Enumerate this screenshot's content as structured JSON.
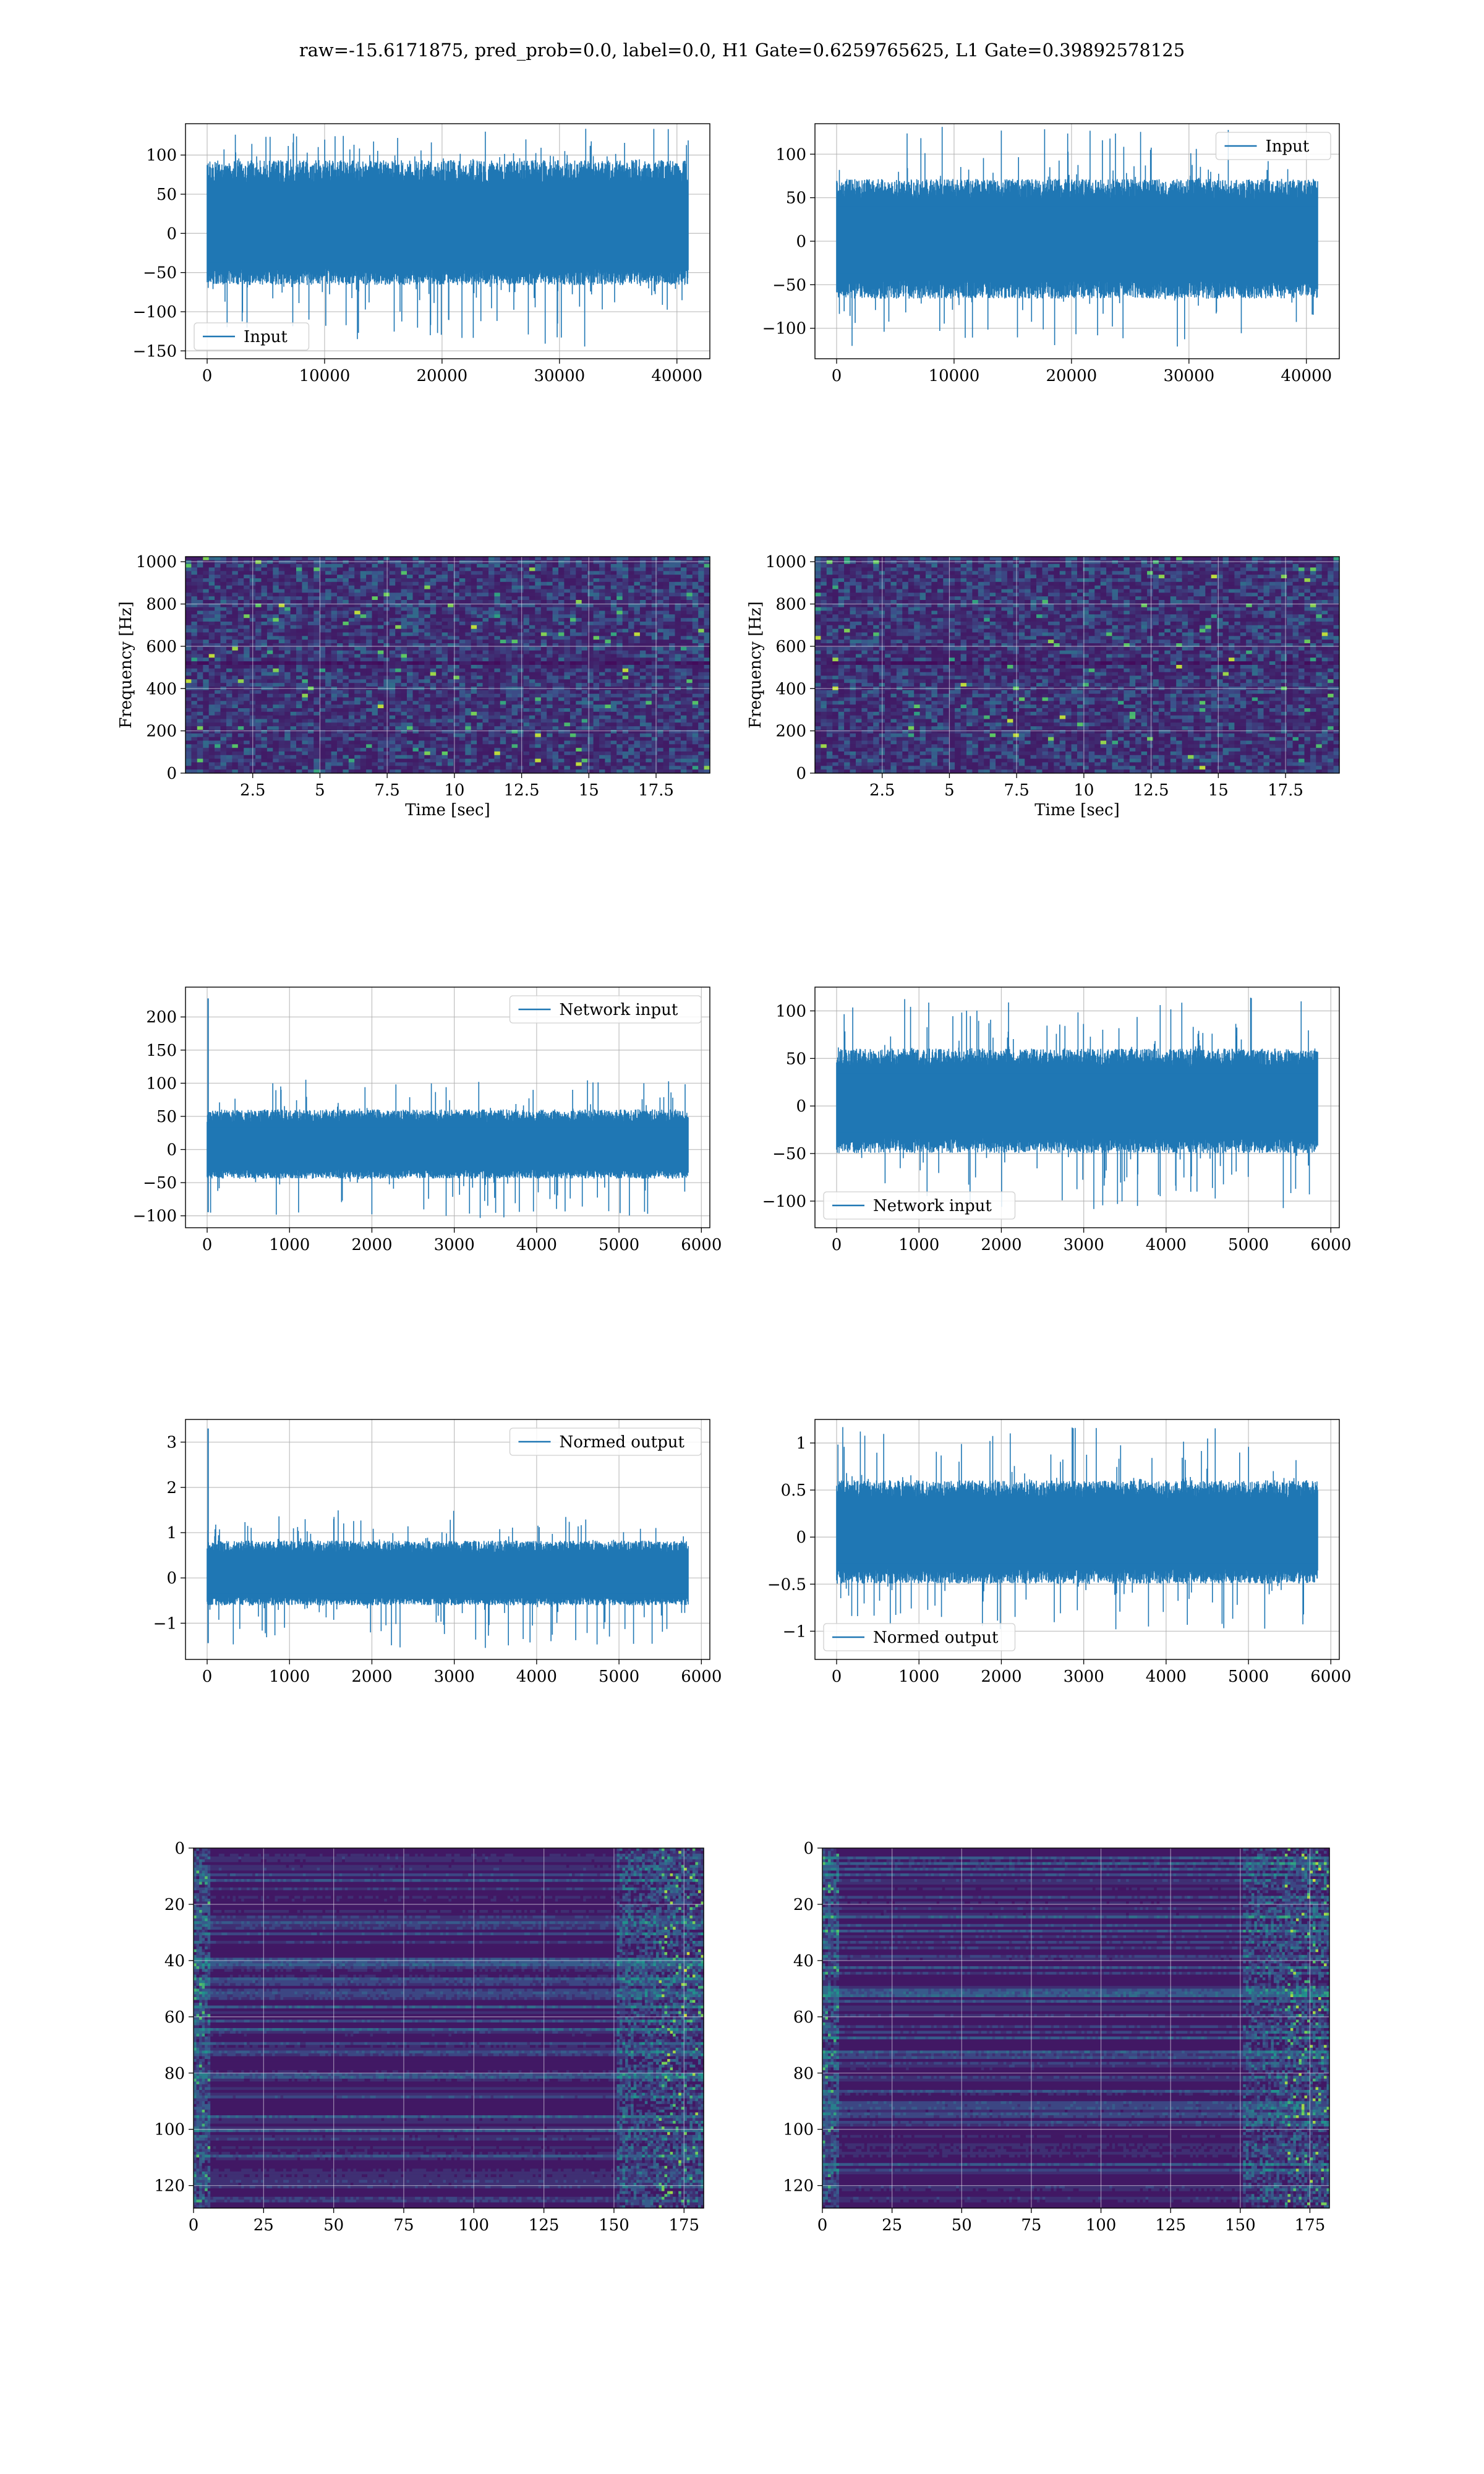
{
  "figure": {
    "title": "raw=-15.6171875, pred_prob=0.0, label=0.0, H1 Gate=0.6259765625, L1 Gate=0.39892578125"
  },
  "colors": {
    "series": "#1f77b4",
    "grid": "#b0b0b0",
    "heatmap_base": "#440154",
    "heatmap_mid": "#3b528b",
    "heatmap_high": "#21918c",
    "heatmap_peak": "#5ec962",
    "heatmap_max": "#fde725"
  },
  "chart_data": [
    {
      "id": "input-h1",
      "type": "line",
      "legend": {
        "label": "Input",
        "placement": "lower-left"
      },
      "x_range": [
        0,
        40960
      ],
      "ylim": [
        -160,
        140
      ],
      "xticks": [
        0,
        10000,
        20000,
        30000,
        40000
      ],
      "yticks": [
        -150,
        -100,
        -50,
        0,
        50,
        100
      ],
      "signal": {
        "n_samples": 40960,
        "typical_min": -60,
        "typical_max": 85,
        "peak_min": -147,
        "peak_max": 135
      },
      "grid": true
    },
    {
      "id": "input-l1",
      "type": "line",
      "legend": {
        "label": "Input",
        "placement": "upper-right"
      },
      "x_range": [
        0,
        40960
      ],
      "ylim": [
        -135,
        135
      ],
      "xticks": [
        0,
        10000,
        20000,
        30000,
        40000
      ],
      "yticks": [
        -100,
        -50,
        0,
        50,
        100
      ],
      "signal": {
        "n_samples": 40960,
        "typical_min": -60,
        "typical_max": 65,
        "peak_min": -122,
        "peak_max": 132
      },
      "grid": true
    },
    {
      "id": "spec-h1",
      "type": "heatmap",
      "xlabel": "Time [sec]",
      "ylabel": "Frequency [Hz]",
      "xlim": [
        0,
        19.5
      ],
      "ylim": [
        0,
        1024
      ],
      "xticks": [
        2.5,
        5.0,
        7.5,
        10.0,
        12.5,
        15.0,
        17.5
      ],
      "yticks": [
        0,
        200,
        400,
        600,
        800,
        1000
      ],
      "grid": true
    },
    {
      "id": "spec-l1",
      "type": "heatmap",
      "xlabel": "Time [sec]",
      "ylabel": "Frequency [Hz]",
      "xlim": [
        0,
        19.5
      ],
      "ylim": [
        0,
        1024
      ],
      "xticks": [
        2.5,
        5.0,
        7.5,
        10.0,
        12.5,
        15.0,
        17.5
      ],
      "yticks": [
        0,
        200,
        400,
        600,
        800,
        1000
      ],
      "grid": true
    },
    {
      "id": "net-h1",
      "type": "line",
      "legend": {
        "label": "Network input",
        "placement": "upper-right"
      },
      "x_range": [
        0,
        5840
      ],
      "ylim": [
        -118,
        245
      ],
      "xticks": [
        0,
        1000,
        2000,
        3000,
        4000,
        5000,
        6000
      ],
      "yticks": [
        -100,
        -50,
        0,
        50,
        100,
        150,
        200
      ],
      "signal": {
        "n_samples": 5840,
        "typical_min": -40,
        "typical_max": 55,
        "peak_min": -105,
        "peak_max": 107,
        "spike": 228
      },
      "grid": true
    },
    {
      "id": "net-l1",
      "type": "line",
      "legend": {
        "label": "Network input",
        "placement": "lower-left"
      },
      "x_range": [
        0,
        5840
      ],
      "ylim": [
        -128,
        125
      ],
      "xticks": [
        0,
        1000,
        2000,
        3000,
        4000,
        5000,
        6000
      ],
      "yticks": [
        -100,
        -50,
        0,
        50,
        100
      ],
      "signal": {
        "n_samples": 5840,
        "typical_min": -45,
        "typical_max": 55,
        "peak_min": -110,
        "peak_max": 115
      },
      "grid": true
    },
    {
      "id": "norm-h1",
      "type": "line",
      "legend": {
        "label": "Normed output",
        "placement": "upper-right"
      },
      "x_range": [
        0,
        5840
      ],
      "ylim": [
        -1.8,
        3.5
      ],
      "xticks": [
        0,
        1000,
        2000,
        3000,
        4000,
        5000,
        6000
      ],
      "yticks": [
        -1,
        0,
        1,
        2,
        3
      ],
      "signal": {
        "n_samples": 5840,
        "typical_min": -0.55,
        "typical_max": 0.75,
        "peak_min": -1.6,
        "peak_max": 1.5,
        "spike": 3.3
      },
      "grid": true
    },
    {
      "id": "norm-l1",
      "type": "line",
      "legend": {
        "label": "Normed output",
        "placement": "lower-left"
      },
      "x_range": [
        0,
        5840
      ],
      "ylim": [
        -1.3,
        1.25
      ],
      "xticks": [
        0,
        1000,
        2000,
        3000,
        4000,
        5000,
        6000
      ],
      "yticks": [
        -1.0,
        -0.5,
        0.0,
        0.5,
        1.0
      ],
      "signal": {
        "n_samples": 5840,
        "typical_min": -0.45,
        "typical_max": 0.55,
        "peak_min": -1.05,
        "peak_max": 1.17
      },
      "grid": true
    },
    {
      "id": "feat-h1",
      "type": "heatmap",
      "xlim": [
        0,
        182
      ],
      "ylim": [
        128,
        0
      ],
      "xticks": [
        0,
        25,
        50,
        75,
        100,
        125,
        150,
        175
      ],
      "yticks": [
        0,
        20,
        40,
        60,
        80,
        100,
        120
      ],
      "grid": true
    },
    {
      "id": "feat-l1",
      "type": "heatmap",
      "xlim": [
        0,
        182
      ],
      "ylim": [
        128,
        0
      ],
      "xticks": [
        0,
        25,
        50,
        75,
        100,
        125,
        150,
        175
      ],
      "yticks": [
        0,
        20,
        40,
        60,
        80,
        100,
        120
      ],
      "grid": true
    }
  ]
}
